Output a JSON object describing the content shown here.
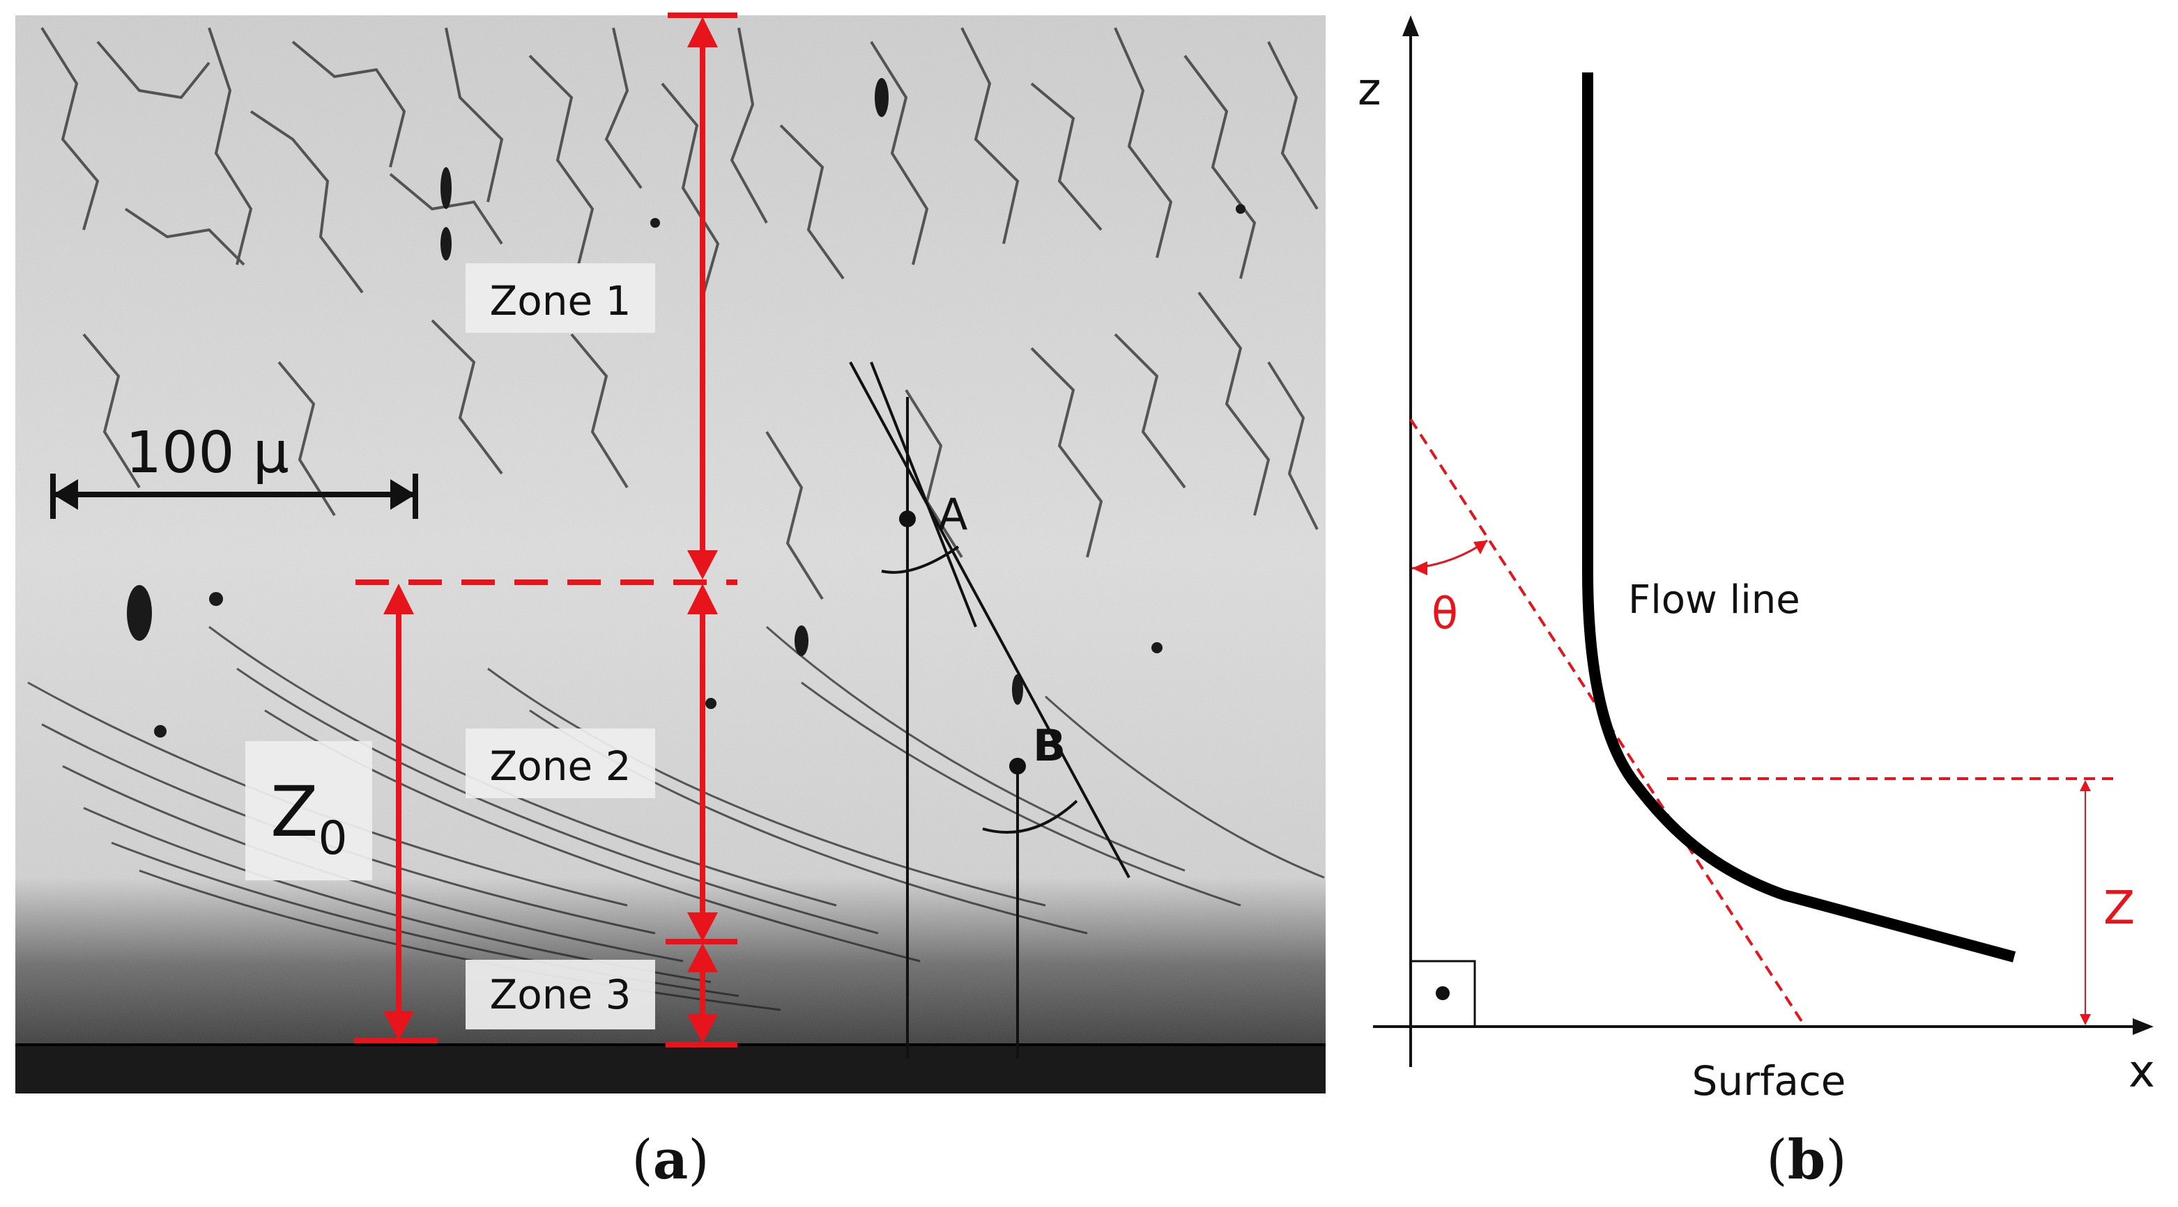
{
  "panel_a": {
    "caption_label": "a",
    "scale_bar_label": "100 μ",
    "zone1_label": "Zone 1",
    "zone2_label": "Zone 2",
    "zone3_label": "Zone 3",
    "z0_symbol": "Z",
    "z0_subscript": "0",
    "point_a_label": "A",
    "point_b_label": "B"
  },
  "panel_b": {
    "caption_label": "b",
    "axis_z_label": "z",
    "axis_x_label": "x",
    "surface_label": "Surface",
    "flow_line_label": "Flow line",
    "theta_label": "θ",
    "depth_label": "Z"
  },
  "colors": {
    "accent_red": "#e8141c",
    "ink": "#111111",
    "photo_background": "#d9d9d9",
    "label_box": "#eeeeee"
  }
}
